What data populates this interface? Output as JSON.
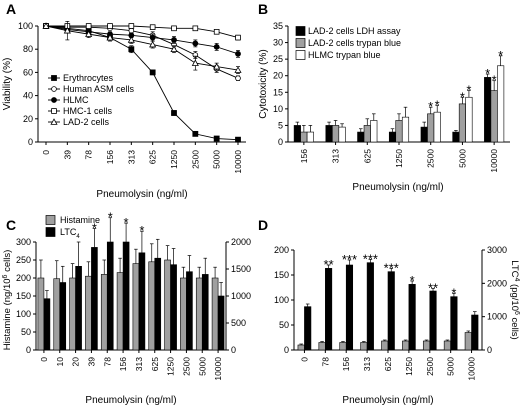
{
  "chart_data": [
    {
      "panel": "A",
      "type": "line",
      "xlabel": "Pneumolysin (ng/ml)",
      "ylabel": "Viability (%)",
      "ylim": [
        0,
        100
      ],
      "yticks": [
        0,
        20,
        40,
        60,
        80,
        100
      ],
      "categories": [
        "0",
        "39",
        "78",
        "156",
        "313",
        "625",
        "1250",
        "2500",
        "5000",
        "10000"
      ],
      "legend_position": "bottom-left",
      "series": [
        {
          "name": "Erythrocytes",
          "marker": "square-filled",
          "values": [
            100,
            98,
            96,
            90,
            80,
            60,
            25,
            7,
            3,
            2
          ],
          "errors": [
            0,
            1,
            1,
            2,
            3,
            2,
            2,
            1,
            1,
            1
          ]
        },
        {
          "name": "Human ASM cells",
          "marker": "circle-open",
          "values": [
            100,
            99,
            99,
            98,
            96,
            92,
            84,
            75,
            63,
            55
          ],
          "errors": [
            0,
            1,
            1,
            1,
            2,
            3,
            3,
            3,
            3,
            2
          ]
        },
        {
          "name": "HLMC",
          "marker": "circle-filled",
          "values": [
            100,
            97,
            95,
            93,
            92,
            90,
            88,
            85,
            82,
            76
          ],
          "errors": [
            0,
            2,
            2,
            2,
            2,
            3,
            3,
            3,
            3,
            3
          ]
        },
        {
          "name": "HMC-1 cells",
          "marker": "square-open",
          "values": [
            100,
            100,
            100,
            100,
            100,
            99,
            98,
            98,
            95,
            90
          ],
          "errors": [
            0,
            1,
            1,
            1,
            1,
            1,
            1,
            1,
            1,
            2
          ]
        },
        {
          "name": "LAD-2 cells",
          "marker": "triangle-open",
          "values": [
            100,
            96,
            93,
            90,
            88,
            84,
            80,
            68,
            65,
            62
          ],
          "errors": [
            0,
            8,
            3,
            3,
            3,
            3,
            3,
            6,
            3,
            3
          ]
        }
      ]
    },
    {
      "panel": "B",
      "type": "bar",
      "xlabel": "Pneumolysin (ng/ml)",
      "ylabel": "Cytotoxicity (%)",
      "ylim": [
        0,
        35
      ],
      "yticks": [
        0,
        5,
        10,
        15,
        20,
        25,
        30,
        35
      ],
      "categories": [
        "156",
        "313",
        "625",
        "1250",
        "2500",
        "5000",
        "10000"
      ],
      "legend_position": "top-left",
      "series": [
        {
          "name": "LAD-2 cells LDH assay",
          "color": "#000000",
          "values": [
            5,
            5,
            3,
            3,
            4.5,
            3,
            19.5
          ],
          "errors": [
            1,
            1,
            1,
            1,
            1.5,
            0.5,
            1
          ]
        },
        {
          "name": "LAD-2 cells trypan blue",
          "color": "#a0a0a0",
          "values": [
            3,
            5,
            5,
            6.5,
            8.5,
            11.5,
            15.5
          ],
          "errors": [
            2,
            1.5,
            2,
            2,
            2,
            2,
            3
          ]
        },
        {
          "name": "HLMC trypan blue",
          "color": "#ffffff",
          "values": [
            3,
            4.5,
            6.5,
            7.5,
            9,
            13.5,
            23
          ],
          "errors": [
            2,
            1,
            2,
            3,
            2,
            2,
            3
          ]
        }
      ],
      "significance": [
        {
          "category": "2500",
          "series": 1,
          "label": "*"
        },
        {
          "category": "2500",
          "series": 2,
          "label": "*"
        },
        {
          "category": "5000",
          "series": 1,
          "label": "*"
        },
        {
          "category": "5000",
          "series": 2,
          "label": "*"
        },
        {
          "category": "10000",
          "series": 0,
          "label": "*"
        },
        {
          "category": "10000",
          "series": 1,
          "label": "*"
        },
        {
          "category": "10000",
          "series": 2,
          "label": "*"
        }
      ]
    },
    {
      "panel": "C",
      "type": "bar",
      "xlabel": "Pneumolysin (ng/ml)",
      "ylabel": "Histamine (ng/10^6 cells)",
      "ylabel_parts": [
        "Histamine (ng/10",
        "6",
        " cells)"
      ],
      "y2label": "LTC4 (pg/10^6 cells)",
      "ylim": [
        0,
        300
      ],
      "yticks": [
        0,
        50,
        100,
        150,
        200,
        250,
        300
      ],
      "y2lim": [
        0,
        2000
      ],
      "y2ticks": [
        0,
        500,
        1000,
        1500,
        2000
      ],
      "categories": [
        "0",
        "10",
        "20",
        "39",
        "78",
        "156",
        "313",
        "625",
        "1250",
        "2500",
        "5000",
        "10000"
      ],
      "legend_position": "top-left",
      "series": [
        {
          "name": "Histamine",
          "name_parts": [
            "Histamine",
            ""
          ],
          "axis": "left",
          "color": "#a0a0a0",
          "values": [
            200,
            198,
            200,
            205,
            210,
            215,
            240,
            245,
            250,
            200,
            200,
            200
          ],
          "errors": [
            50,
            50,
            40,
            40,
            40,
            40,
            40,
            50,
            40,
            30,
            30,
            30
          ]
        },
        {
          "name": "LTC4",
          "name_parts": [
            "LTC",
            "4"
          ],
          "axis": "right",
          "color": "#000000",
          "values": [
            950,
            1250,
            1550,
            1900,
            2000,
            2000,
            1800,
            1700,
            1580,
            1450,
            1400,
            1000
          ],
          "errors": [
            150,
            300,
            450,
            350,
            450,
            350,
            400,
            350,
            300,
            300,
            300,
            250
          ]
        }
      ],
      "significance": [
        {
          "category": "39",
          "series": 1,
          "label": "*"
        },
        {
          "category": "78",
          "series": 1,
          "label": "*"
        },
        {
          "category": "156",
          "series": 1,
          "label": "*"
        },
        {
          "category": "313",
          "series": 1,
          "label": "*"
        }
      ]
    },
    {
      "panel": "D",
      "type": "bar",
      "xlabel": "Pneumolysin (ng/ml)",
      "ylabel": "",
      "y2label": "LTC4 (pg/10^6 cells)",
      "y2label_parts": [
        "LTC",
        "4",
        " (pg/10",
        "6",
        " cells)"
      ],
      "ylim": [
        0,
        200
      ],
      "yticks": [
        0,
        50,
        100,
        150,
        200
      ],
      "y2lim": [
        0,
        3000
      ],
      "y2ticks": [
        0,
        1000,
        2000,
        3000
      ],
      "categories": [
        "0",
        "78",
        "156",
        "313",
        "625",
        "1250",
        "2500",
        "5000",
        "10000"
      ],
      "series": [
        {
          "name": "Histamine",
          "axis": "left",
          "color": "#a0a0a0",
          "values": [
            10,
            15,
            15,
            15,
            18,
            18,
            18,
            18,
            35
          ],
          "errors": [
            2,
            2,
            2,
            2,
            2,
            2,
            2,
            2,
            3
          ]
        },
        {
          "name": "LTC4",
          "axis": "right",
          "color": "#000000",
          "values": [
            1300,
            2450,
            2550,
            2620,
            2350,
            1970,
            1770,
            1600,
            1050
          ],
          "errors": [
            80,
            100,
            150,
            100,
            100,
            100,
            80,
            100,
            100
          ]
        }
      ],
      "significance": [
        {
          "category": "78",
          "series": 1,
          "label": "**"
        },
        {
          "category": "156",
          "series": 1,
          "label": "***"
        },
        {
          "category": "313",
          "series": 1,
          "label": "***"
        },
        {
          "category": "625",
          "series": 1,
          "label": "***"
        },
        {
          "category": "1250",
          "series": 1,
          "label": "*"
        },
        {
          "category": "2500",
          "series": 1,
          "label": "**"
        },
        {
          "category": "5000",
          "series": 1,
          "label": "*"
        }
      ]
    }
  ]
}
